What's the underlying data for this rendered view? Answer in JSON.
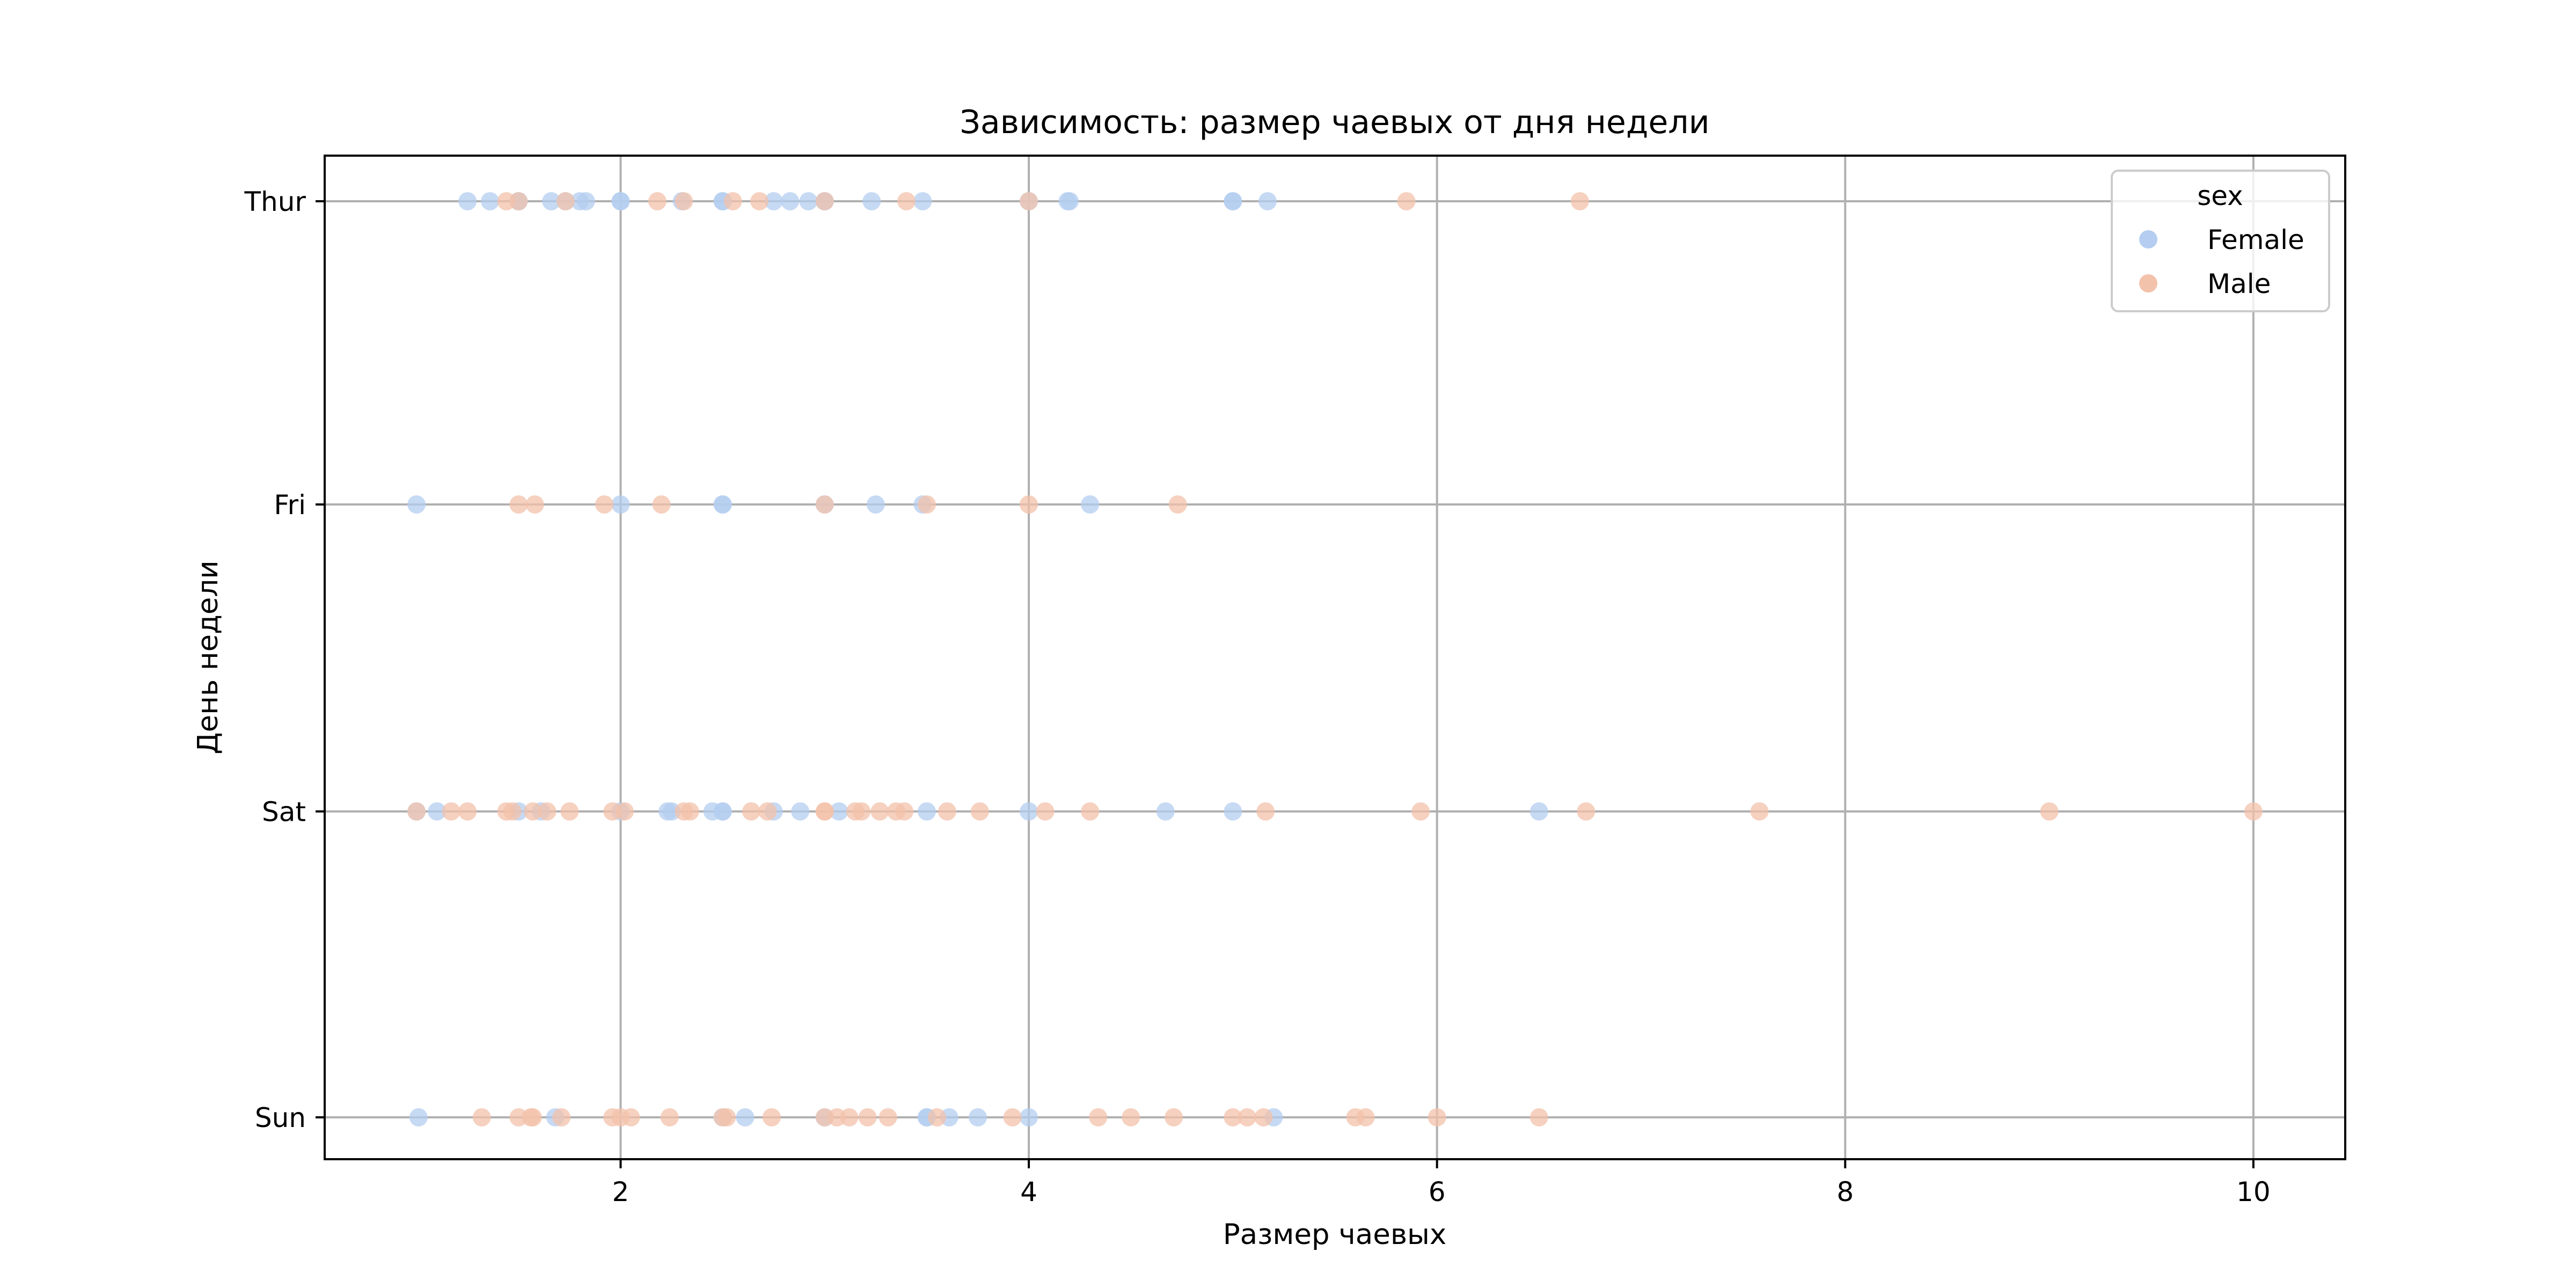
{
  "chart_data": {
    "type": "scatter",
    "title": "Зависимость: размер чаевых от дня недели",
    "xlabel": "Размер чаевых",
    "ylabel": "День недели",
    "xlim": [
      0.55,
      10.45
    ],
    "x_ticks": [
      2,
      4,
      6,
      8,
      10
    ],
    "x_tick_labels": [
      "2",
      "4",
      "6",
      "8",
      "10"
    ],
    "categories": [
      "Thur",
      "Fri",
      "Sat",
      "Sun"
    ],
    "grid": true,
    "legend": {
      "title": "sex",
      "placement": "top-right"
    },
    "series": [
      {
        "name": "Female",
        "color": "#b4cdf0",
        "points": [
          [
            1.25,
            "Thur"
          ],
          [
            1.36,
            "Thur"
          ],
          [
            1.5,
            "Thur"
          ],
          [
            1.5,
            "Thur"
          ],
          [
            1.66,
            "Thur"
          ],
          [
            1.73,
            "Thur"
          ],
          [
            1.8,
            "Thur"
          ],
          [
            1.83,
            "Thur"
          ],
          [
            2.0,
            "Thur"
          ],
          [
            2.0,
            "Thur"
          ],
          [
            2.3,
            "Thur"
          ],
          [
            2.5,
            "Thur"
          ],
          [
            2.5,
            "Thur"
          ],
          [
            2.75,
            "Thur"
          ],
          [
            2.83,
            "Thur"
          ],
          [
            2.92,
            "Thur"
          ],
          [
            3.0,
            "Thur"
          ],
          [
            3.0,
            "Thur"
          ],
          [
            3.23,
            "Thur"
          ],
          [
            3.48,
            "Thur"
          ],
          [
            4.0,
            "Thur"
          ],
          [
            4.19,
            "Thur"
          ],
          [
            4.2,
            "Thur"
          ],
          [
            5.0,
            "Thur"
          ],
          [
            5.0,
            "Thur"
          ],
          [
            5.17,
            "Thur"
          ],
          [
            1.0,
            "Fri"
          ],
          [
            2.0,
            "Fri"
          ],
          [
            2.5,
            "Fri"
          ],
          [
            2.5,
            "Fri"
          ],
          [
            3.0,
            "Fri"
          ],
          [
            3.25,
            "Fri"
          ],
          [
            3.48,
            "Fri"
          ],
          [
            4.3,
            "Fri"
          ],
          [
            1.0,
            "Sat"
          ],
          [
            1.1,
            "Sat"
          ],
          [
            1.5,
            "Sat"
          ],
          [
            1.61,
            "Sat"
          ],
          [
            2.0,
            "Sat"
          ],
          [
            2.23,
            "Sat"
          ],
          [
            2.25,
            "Sat"
          ],
          [
            2.45,
            "Sat"
          ],
          [
            2.5,
            "Sat"
          ],
          [
            2.5,
            "Sat"
          ],
          [
            2.75,
            "Sat"
          ],
          [
            2.88,
            "Sat"
          ],
          [
            3.07,
            "Sat"
          ],
          [
            3.5,
            "Sat"
          ],
          [
            4.0,
            "Sat"
          ],
          [
            4.67,
            "Sat"
          ],
          [
            5.0,
            "Sat"
          ],
          [
            6.5,
            "Sat"
          ],
          [
            1.01,
            "Sun"
          ],
          [
            1.68,
            "Sun"
          ],
          [
            2.5,
            "Sun"
          ],
          [
            2.61,
            "Sun"
          ],
          [
            3.0,
            "Sun"
          ],
          [
            3.5,
            "Sun"
          ],
          [
            3.5,
            "Sun"
          ],
          [
            3.61,
            "Sun"
          ],
          [
            3.75,
            "Sun"
          ],
          [
            4.0,
            "Sun"
          ],
          [
            5.2,
            "Sun"
          ]
        ]
      },
      {
        "name": "Male",
        "color": "#f3c2ab",
        "points": [
          [
            1.44,
            "Thur"
          ],
          [
            1.5,
            "Thur"
          ],
          [
            1.73,
            "Thur"
          ],
          [
            2.18,
            "Thur"
          ],
          [
            2.31,
            "Thur"
          ],
          [
            2.55,
            "Thur"
          ],
          [
            2.68,
            "Thur"
          ],
          [
            3.0,
            "Thur"
          ],
          [
            3.4,
            "Thur"
          ],
          [
            4.0,
            "Thur"
          ],
          [
            5.85,
            "Thur"
          ],
          [
            6.7,
            "Thur"
          ],
          [
            1.5,
            "Fri"
          ],
          [
            1.58,
            "Fri"
          ],
          [
            1.92,
            "Fri"
          ],
          [
            2.2,
            "Fri"
          ],
          [
            3.0,
            "Fri"
          ],
          [
            3.5,
            "Fri"
          ],
          [
            4.0,
            "Fri"
          ],
          [
            4.73,
            "Fri"
          ],
          [
            1.0,
            "Sat"
          ],
          [
            1.17,
            "Sat"
          ],
          [
            1.25,
            "Sat"
          ],
          [
            1.44,
            "Sat"
          ],
          [
            1.47,
            "Sat"
          ],
          [
            1.57,
            "Sat"
          ],
          [
            1.64,
            "Sat"
          ],
          [
            1.75,
            "Sat"
          ],
          [
            1.96,
            "Sat"
          ],
          [
            2.02,
            "Sat"
          ],
          [
            2.31,
            "Sat"
          ],
          [
            2.34,
            "Sat"
          ],
          [
            2.64,
            "Sat"
          ],
          [
            2.72,
            "Sat"
          ],
          [
            3.0,
            "Sat"
          ],
          [
            3.0,
            "Sat"
          ],
          [
            3.15,
            "Sat"
          ],
          [
            3.18,
            "Sat"
          ],
          [
            3.27,
            "Sat"
          ],
          [
            3.35,
            "Sat"
          ],
          [
            3.39,
            "Sat"
          ],
          [
            3.6,
            "Sat"
          ],
          [
            3.76,
            "Sat"
          ],
          [
            4.08,
            "Sat"
          ],
          [
            4.3,
            "Sat"
          ],
          [
            5.16,
            "Sat"
          ],
          [
            5.92,
            "Sat"
          ],
          [
            6.73,
            "Sat"
          ],
          [
            7.58,
            "Sat"
          ],
          [
            9.0,
            "Sat"
          ],
          [
            10.0,
            "Sat"
          ],
          [
            1.32,
            "Sun"
          ],
          [
            1.5,
            "Sun"
          ],
          [
            1.56,
            "Sun"
          ],
          [
            1.57,
            "Sun"
          ],
          [
            1.71,
            "Sun"
          ],
          [
            1.96,
            "Sun"
          ],
          [
            2.0,
            "Sun"
          ],
          [
            2.05,
            "Sun"
          ],
          [
            2.24,
            "Sun"
          ],
          [
            2.5,
            "Sun"
          ],
          [
            2.52,
            "Sun"
          ],
          [
            2.74,
            "Sun"
          ],
          [
            3.0,
            "Sun"
          ],
          [
            3.06,
            "Sun"
          ],
          [
            3.12,
            "Sun"
          ],
          [
            3.21,
            "Sun"
          ],
          [
            3.31,
            "Sun"
          ],
          [
            3.55,
            "Sun"
          ],
          [
            3.92,
            "Sun"
          ],
          [
            4.34,
            "Sun"
          ],
          [
            4.5,
            "Sun"
          ],
          [
            4.71,
            "Sun"
          ],
          [
            5.0,
            "Sun"
          ],
          [
            5.07,
            "Sun"
          ],
          [
            5.15,
            "Sun"
          ],
          [
            5.6,
            "Sun"
          ],
          [
            5.65,
            "Sun"
          ],
          [
            6.0,
            "Sun"
          ],
          [
            6.5,
            "Sun"
          ]
        ]
      }
    ]
  }
}
